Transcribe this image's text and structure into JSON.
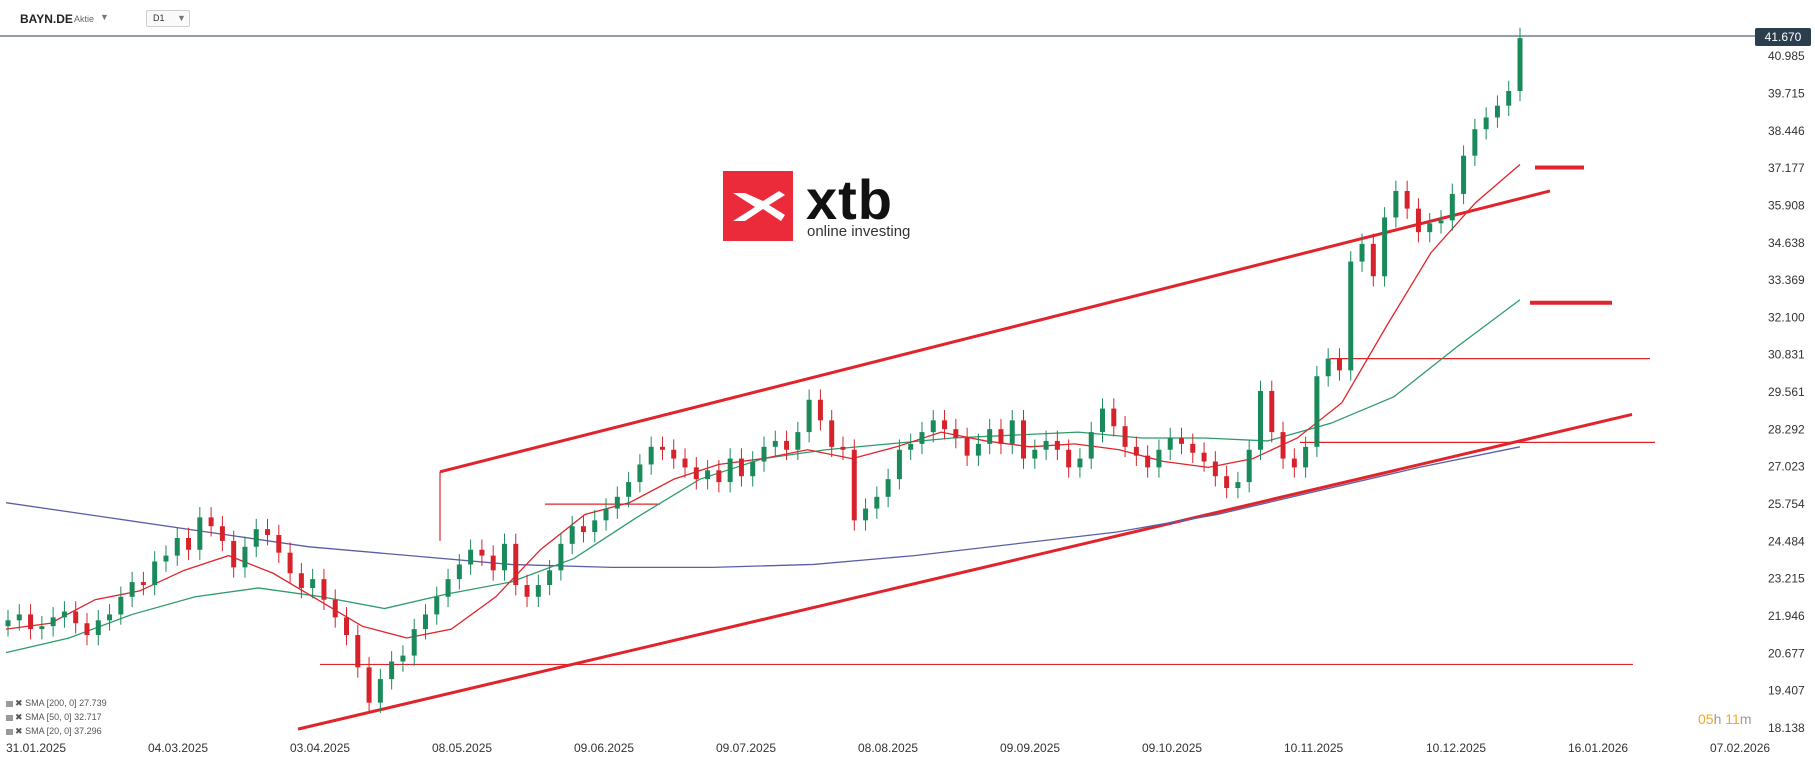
{
  "header": {
    "symbol": "BAYN.DE",
    "symbol_type": "Aktie",
    "timeframe": "D1"
  },
  "logo": {
    "brand": "xtb",
    "tagline": "online investing",
    "color": "#ec2b3a"
  },
  "last_price_label": "41.670",
  "countdown": {
    "hours": "05",
    "h_unit": "h",
    "minutes": "11",
    "m_unit": "m"
  },
  "legend": [
    {
      "label": "SMA [200, 0] 27.739"
    },
    {
      "label": "SMA [50, 0] 32.717"
    },
    {
      "label": "SMA [20, 0] 37.296"
    }
  ],
  "colors": {
    "up": "#1a8a5a",
    "down": "#d7222b",
    "sma200": "#5b5ea6",
    "sma50": "#2e9b6a",
    "sma20": "#e0242c",
    "trend": "#e0242c",
    "last_price_line": "#2b3e4d"
  },
  "chart_data": {
    "type": "candlestick",
    "title": "",
    "xlabel": "",
    "ylabel": "",
    "ylim": [
      17.5,
      43.0
    ],
    "grid": false,
    "y_ticks": [
      "40.985",
      "39.715",
      "38.446",
      "37.177",
      "35.908",
      "34.638",
      "33.369",
      "32.100",
      "30.831",
      "29.561",
      "28.292",
      "27.023",
      "25.754",
      "24.484",
      "23.215",
      "21.946",
      "20.677",
      "19.407",
      "18.138"
    ],
    "x_ticks": [
      "31.01.2025",
      "04.03.2025",
      "03.04.2025",
      "08.05.2025",
      "09.06.2025",
      "09.07.2025",
      "08.08.2025",
      "09.09.2025",
      "09.10.2025",
      "10.11.2025",
      "10.12.2025",
      "16.01.2026",
      "07.02.2026"
    ],
    "last_price": 41.67,
    "close_series_approx": [
      21.8,
      22.0,
      21.5,
      21.6,
      21.9,
      22.1,
      21.7,
      21.3,
      21.8,
      22.0,
      22.6,
      23.1,
      23.0,
      23.8,
      24.0,
      24.6,
      24.2,
      25.3,
      25.0,
      24.5,
      23.6,
      24.3,
      24.9,
      24.7,
      24.1,
      23.4,
      22.9,
      23.2,
      22.5,
      21.9,
      21.3,
      20.2,
      19.0,
      19.8,
      20.4,
      20.6,
      21.5,
      22.0,
      22.6,
      23.2,
      23.7,
      24.2,
      24.0,
      23.5,
      24.4,
      23.0,
      22.6,
      23.0,
      23.5,
      24.4,
      25.0,
      24.8,
      25.2,
      25.6,
      26.0,
      26.5,
      27.1,
      27.7,
      27.6,
      27.3,
      27.0,
      26.6,
      26.9,
      26.5,
      27.3,
      26.7,
      27.2,
      27.7,
      27.9,
      27.6,
      28.2,
      29.3,
      28.6,
      27.7,
      27.6,
      25.2,
      25.6,
      26.0,
      26.6,
      27.6,
      27.8,
      28.2,
      28.6,
      28.3,
      28.0,
      27.4,
      27.8,
      28.3,
      27.8,
      28.6,
      27.3,
      27.6,
      27.9,
      27.6,
      27.0,
      27.3,
      28.2,
      29.0,
      28.4,
      27.7,
      27.4,
      27.0,
      27.6,
      28.0,
      27.8,
      27.5,
      27.2,
      26.7,
      26.3,
      26.5,
      27.6,
      29.6,
      28.2,
      27.3,
      27.0,
      27.7,
      30.1,
      30.7,
      30.3,
      34.0,
      34.6,
      33.5,
      35.5,
      36.4,
      35.8,
      35.0,
      35.3,
      35.4,
      36.3,
      37.6,
      38.5,
      38.9,
      39.3,
      39.8,
      41.6
    ],
    "sma20_approx": [
      21.5,
      21.7,
      22.5,
      22.8,
      23.5,
      24.0,
      23.4,
      22.5,
      21.6,
      21.2,
      21.5,
      22.6,
      24.2,
      25.4,
      25.8,
      26.6,
      27.1,
      27.3,
      27.6,
      27.3,
      27.7,
      28.2,
      27.9,
      27.7,
      27.8,
      27.6,
      27.2,
      27.0,
      27.3,
      28.0,
      29.2,
      31.8,
      34.3,
      36.0,
      37.3
    ],
    "sma50_approx": [
      20.7,
      21.2,
      22.0,
      22.6,
      22.9,
      22.6,
      22.2,
      22.7,
      23.1,
      23.9,
      25.3,
      26.6,
      27.3,
      27.6,
      27.8,
      28.0,
      28.1,
      28.2,
      28.0,
      28.0,
      27.9,
      28.5,
      29.4,
      31.1,
      32.7
    ],
    "sma200_approx": [
      25.8,
      25.3,
      24.8,
      24.3,
      24.0,
      23.7,
      23.6,
      23.6,
      23.7,
      24.0,
      24.4,
      24.8,
      25.4,
      26.2,
      27.0,
      27.7
    ],
    "lines": [
      {
        "name": "",
        "type": "channel-upper"
      },
      {
        "name": "",
        "type": "channel-lower"
      }
    ]
  }
}
